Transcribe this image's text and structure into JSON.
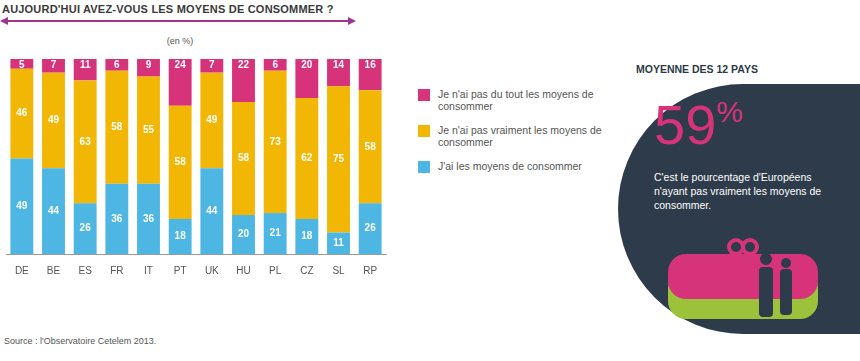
{
  "chart_data": {
    "type": "bar",
    "title": "AUJOURD'HUI AVEZ-VOUS LES MOYENS DE CONSOMMER ?",
    "subtitle": "(en %)",
    "categories": [
      "DE",
      "BE",
      "ES",
      "FR",
      "IT",
      "PT",
      "UK",
      "HU",
      "PL",
      "CZ",
      "SL",
      "RP"
    ],
    "series": [
      {
        "name": "J'ai les moyens de consommer",
        "color": "#4db6e2",
        "values": [
          49,
          44,
          26,
          36,
          36,
          18,
          44,
          20,
          21,
          18,
          11,
          26
        ]
      },
      {
        "name": "Je n'ai pas vraiment les moyens de consommer",
        "color": "#f2b705",
        "values": [
          46,
          49,
          63,
          58,
          55,
          58,
          49,
          58,
          73,
          62,
          75,
          58
        ]
      },
      {
        "name": "Je n'ai pas du tout les moyens de consommer",
        "color": "#d6337a",
        "values": [
          5,
          7,
          11,
          6,
          9,
          24,
          7,
          22,
          6,
          20,
          14,
          16
        ]
      }
    ],
    "stacked": true,
    "data_labels": true,
    "tick_labels": "x",
    "ylim": [
      0,
      100
    ],
    "legend": "right"
  },
  "panel": {
    "title": "MOYENNE DES 12 PAYS",
    "value": 59,
    "label": "59%",
    "text": "C'est le pourcentage d'Européens n'ayant pas vraiment les moyens de consommer."
  },
  "source": "Source : l'Observatoire Cetelem 2013."
}
